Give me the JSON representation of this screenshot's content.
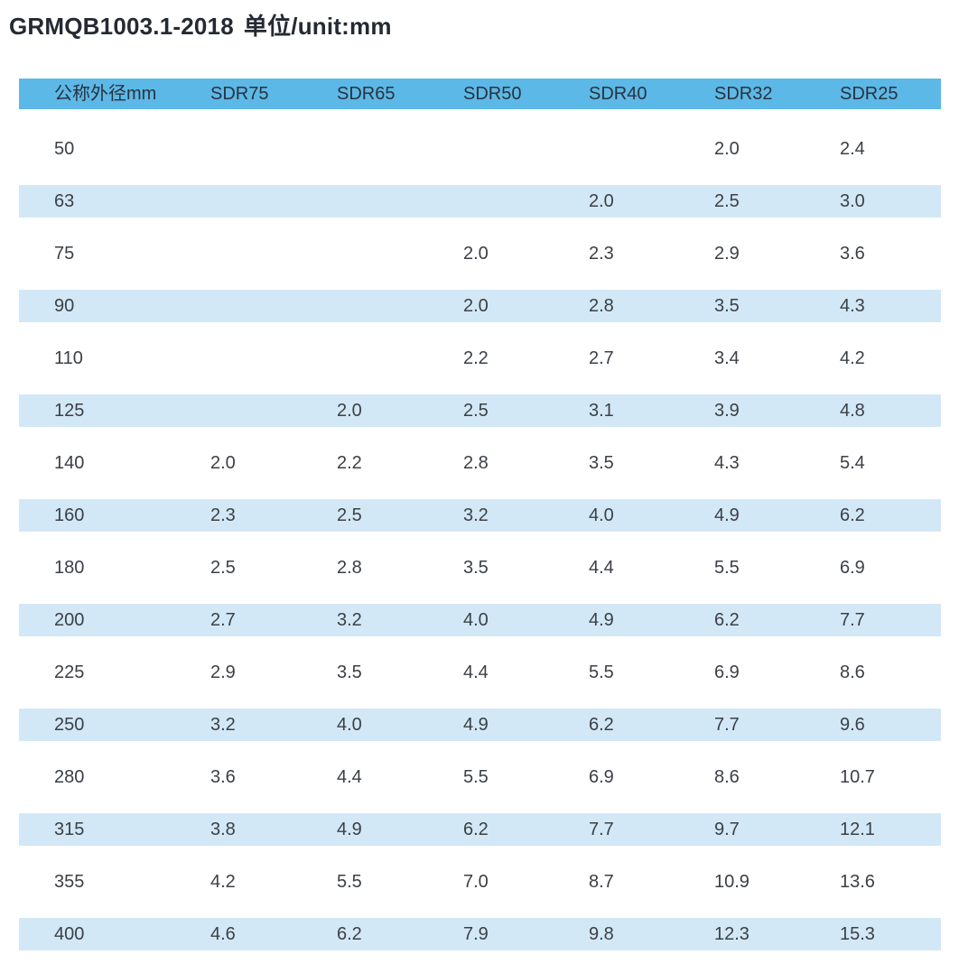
{
  "title": {
    "standard": "GRMQB1003.1-2018",
    "unit": "单位/unit:mm"
  },
  "colors": {
    "header_bg": "#5cb8e7",
    "stripe_bg": "#d3e8f6",
    "title_text": "#242a33",
    "cell_text": "#3b4046"
  },
  "chart_data": {
    "type": "table",
    "title": "GRMQB1003.1-2018 单位/unit:mm",
    "columns": [
      "公称外径mm",
      "SDR75",
      "SDR65",
      "SDR50",
      "SDR40",
      "SDR32",
      "SDR25"
    ],
    "rows": [
      [
        "50",
        "",
        "",
        "",
        "",
        "2.0",
        "2.4"
      ],
      [
        "63",
        "",
        "",
        "",
        "2.0",
        "2.5",
        "3.0"
      ],
      [
        "75",
        "",
        "",
        "2.0",
        "2.3",
        "2.9",
        "3.6"
      ],
      [
        "90",
        "",
        "",
        "2.0",
        "2.8",
        "3.5",
        "4.3"
      ],
      [
        "110",
        "",
        "",
        "2.2",
        "2.7",
        "3.4",
        "4.2"
      ],
      [
        "125",
        "",
        "2.0",
        "2.5",
        "3.1",
        "3.9",
        "4.8"
      ],
      [
        "140",
        "2.0",
        "2.2",
        "2.8",
        "3.5",
        "4.3",
        "5.4"
      ],
      [
        "160",
        "2.3",
        "2.5",
        "3.2",
        "4.0",
        "4.9",
        "6.2"
      ],
      [
        "180",
        "2.5",
        "2.8",
        "3.5",
        "4.4",
        "5.5",
        "6.9"
      ],
      [
        "200",
        "2.7",
        "3.2",
        "4.0",
        "4.9",
        "6.2",
        "7.7"
      ],
      [
        "225",
        "2.9",
        "3.5",
        "4.4",
        "5.5",
        "6.9",
        "8.6"
      ],
      [
        "250",
        "3.2",
        "4.0",
        "4.9",
        "6.2",
        "7.7",
        "9.6"
      ],
      [
        "280",
        "3.6",
        "4.4",
        "5.5",
        "6.9",
        "8.6",
        "10.7"
      ],
      [
        "315",
        "3.8",
        "4.9",
        "6.2",
        "7.7",
        "9.7",
        "12.1"
      ],
      [
        "355",
        "4.2",
        "5.5",
        "7.0",
        "8.7",
        "10.9",
        "13.6"
      ],
      [
        "400",
        "4.6",
        "6.2",
        "7.9",
        "9.8",
        "12.3",
        "15.3"
      ]
    ]
  }
}
